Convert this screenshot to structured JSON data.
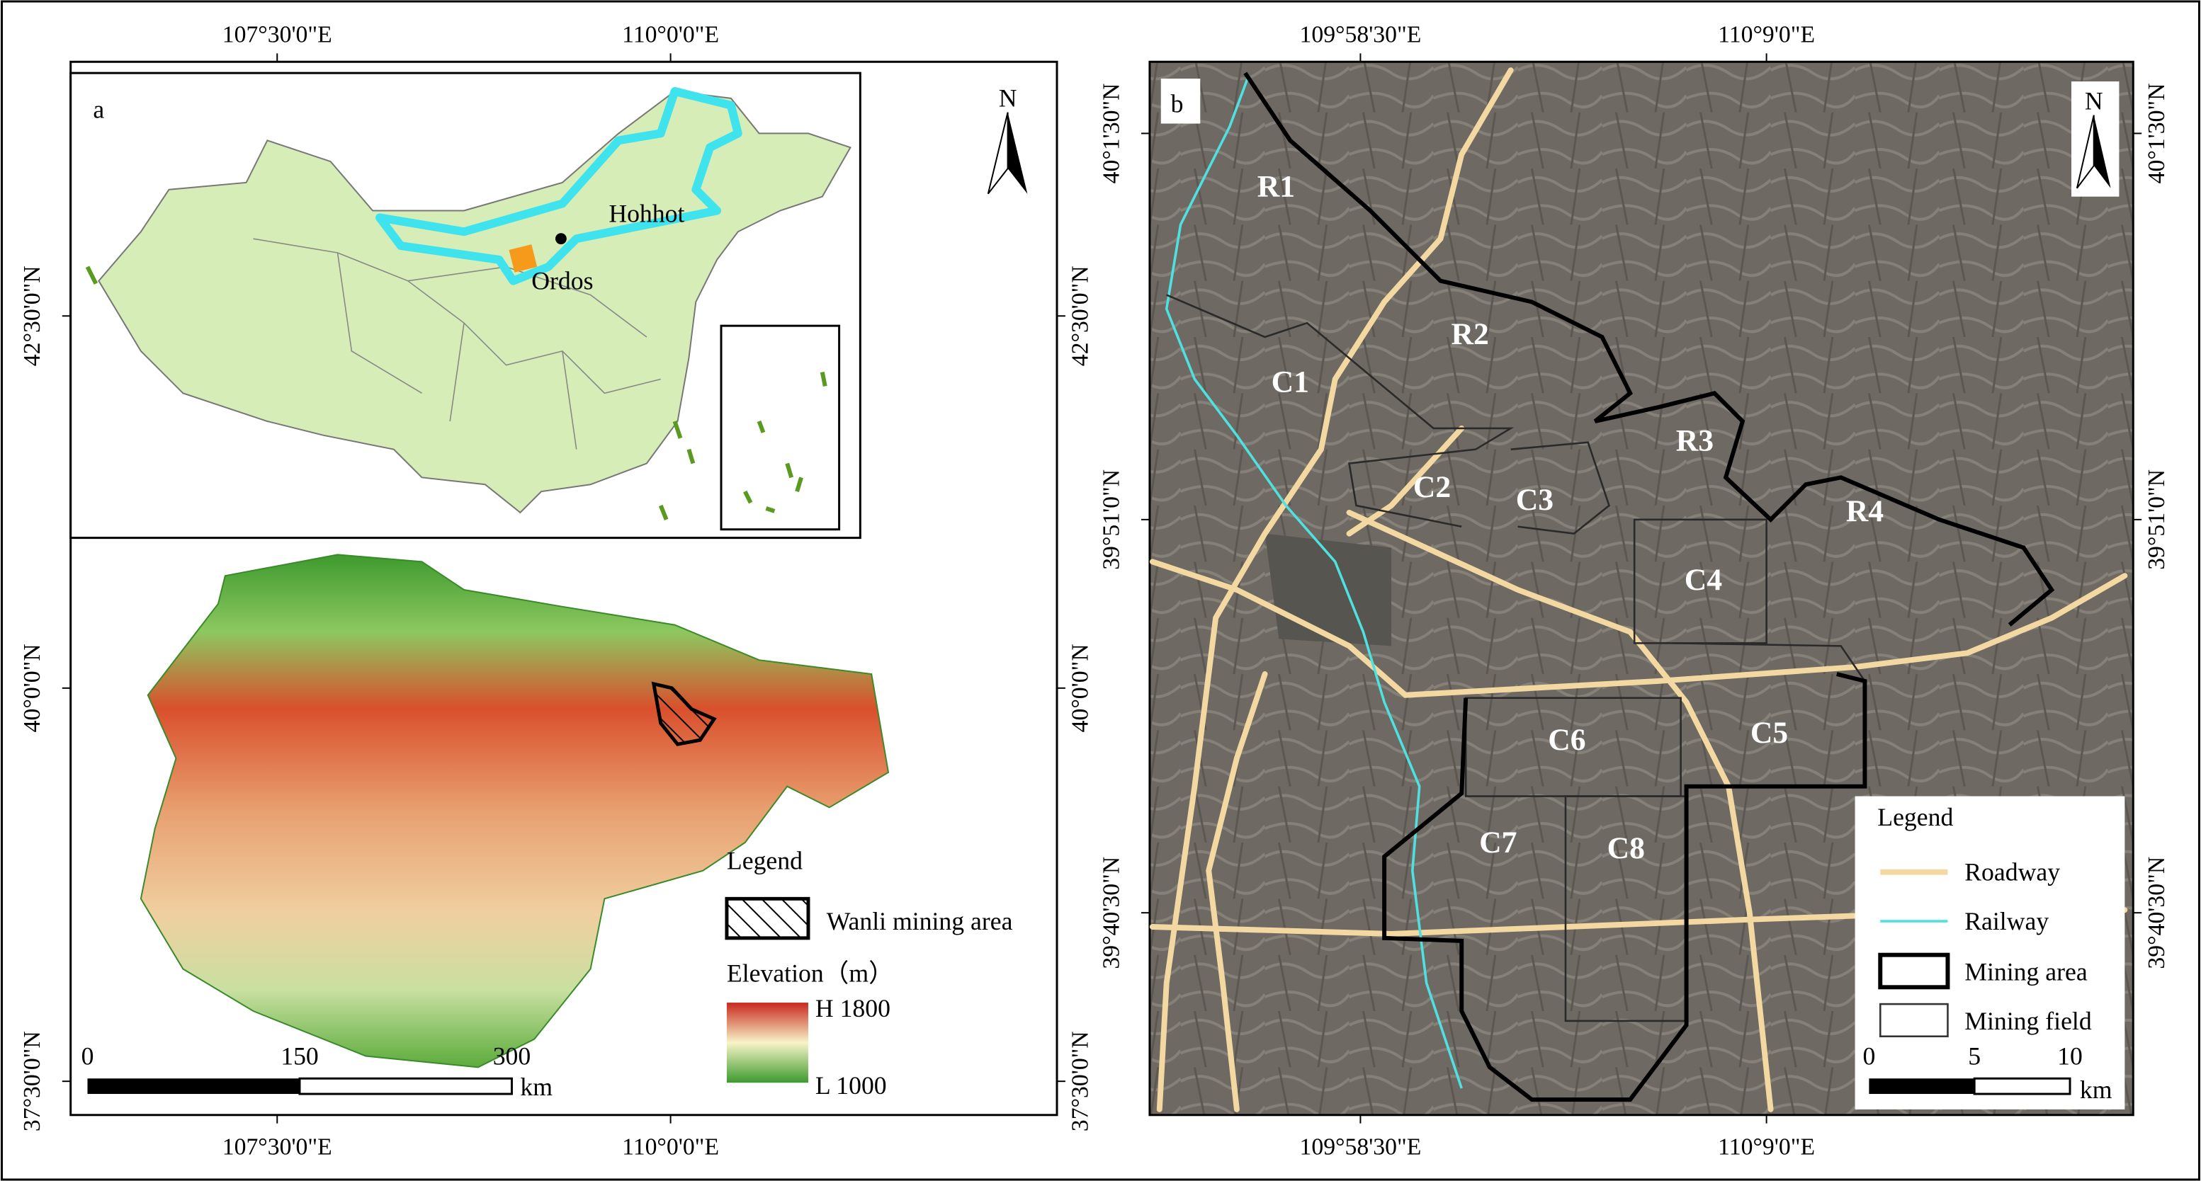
{
  "panel_a": {
    "label": "a",
    "lon_ticks": [
      "107°30'0\"E",
      "110°0'0\"E"
    ],
    "lat_ticks": [
      "42°30'0\"N",
      "40°0'0\"N",
      "37°30'0\"N"
    ],
    "north": "N",
    "cities": [
      "Hohhot",
      "Ordos"
    ],
    "legend": {
      "title": "Legend",
      "mining": "Wanli mining area",
      "elevation_title": "Elevation（m）",
      "high": "H 1800",
      "low": "L 1000"
    },
    "scale": {
      "ticks": [
        "0",
        "150",
        "300"
      ],
      "unit": "km"
    }
  },
  "panel_b": {
    "label": "b",
    "lon_ticks": [
      "109°58'30\"E",
      "110°9'0\"E"
    ],
    "lat_ticks": [
      "40°1'30\"N",
      "39°51'0\"N",
      "39°40'30\"N"
    ],
    "north": "N",
    "regions": [
      "R1",
      "R2",
      "R3",
      "R4",
      "C1",
      "C2",
      "C3",
      "C4",
      "C5",
      "C6",
      "C7",
      "C8"
    ],
    "legend": {
      "title": "Legend",
      "items": [
        "Roadway",
        "Railway",
        "Mining area",
        "Mining field"
      ]
    },
    "scale": {
      "ticks": [
        "0",
        "5",
        "10"
      ],
      "unit": "km"
    }
  }
}
